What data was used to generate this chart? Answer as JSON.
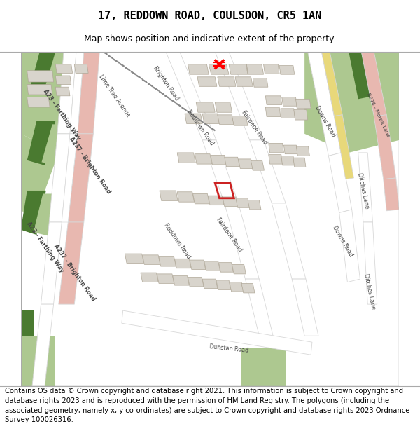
{
  "title": "17, REDDOWN ROAD, COULSDON, CR5 1AN",
  "subtitle": "Map shows position and indicative extent of the property.",
  "footer": "Contains OS data © Crown copyright and database right 2021. This information is subject to Crown copyright and database rights 2023 and is reproduced with the permission of HM Land Registry. The polygons (including the associated geometry, namely x, y co-ordinates) are subject to Crown copyright and database rights 2023 Ordnance Survey 100026316.",
  "bg": "#f5f4f1",
  "white": "#ffffff",
  "light_gray": "#e8e8e8",
  "road_gray": "#d8d8d8",
  "green_light": "#adc890",
  "green_dark": "#4a7a30",
  "pink_road": "#e8b8b0",
  "yellow_road": "#e8d87a",
  "building_fc": "#d8d4cc",
  "building_ec": "#b0a898",
  "red_box": "#cc2222",
  "border": "#aaaaaa",
  "label_color": "#444444",
  "title_fs": 11,
  "sub_fs": 9,
  "footer_fs": 7.2,
  "label_fs": 5.8
}
